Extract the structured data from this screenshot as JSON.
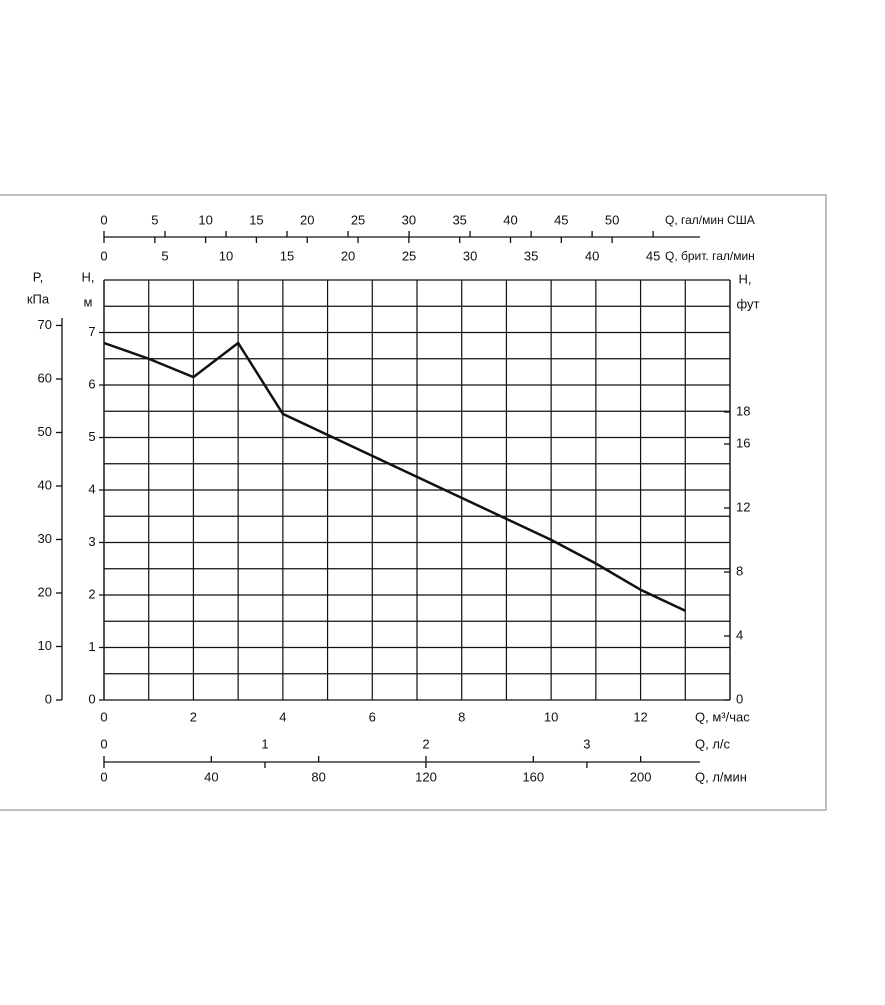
{
  "chart_data": {
    "type": "line",
    "x": [
      0,
      1,
      2,
      3,
      4,
      5,
      6,
      7,
      8,
      9,
      10,
      11,
      12,
      13
    ],
    "values": [
      6.8,
      6.5,
      6.15,
      6.8,
      5.45,
      5.05,
      4.65,
      4.25,
      3.85,
      3.45,
      3.05,
      2.6,
      2.1,
      1.7
    ],
    "color": "#111111",
    "xlim": [
      0,
      14
    ],
    "xticks": [
      0,
      2,
      4,
      6,
      8,
      10,
      12
    ],
    "xgrid": [
      1,
      3,
      5,
      7,
      9,
      11,
      13,
      14
    ],
    "ylim": [
      0,
      8
    ],
    "yticks": [
      0,
      1,
      2,
      3,
      4,
      5,
      6,
      7
    ],
    "ygrid": [
      0.5,
      1.5,
      2.5,
      3.5,
      4.5,
      5.5,
      6.5,
      7.5,
      8
    ],
    "xlabel": "Q, м³/час",
    "ylabel": [
      "H,",
      "м"
    ],
    "axes": [
      {
        "label": "Q, гал/мин США",
        "lim": [
          0,
          61.6
        ],
        "ticks": [
          0,
          5,
          10,
          15,
          20,
          25,
          30,
          35,
          40,
          45,
          50
        ]
      },
      {
        "label": "Q, брит. гал/мин",
        "lim": [
          0,
          51.3
        ],
        "ticks": [
          0,
          5,
          10,
          15,
          20,
          25,
          30,
          35,
          40,
          45
        ]
      },
      {
        "label": "Q, л/с",
        "lim": [
          0,
          3.889
        ],
        "ticks": [
          0,
          1,
          2,
          3
        ]
      },
      {
        "label": "Q, л/мин",
        "lim": [
          0,
          233.3
        ],
        "ticks": [
          0,
          40,
          80,
          120,
          160,
          200
        ]
      },
      {
        "label": [
          "P,",
          "кПа"
        ],
        "lim": [
          0,
          78.5
        ],
        "ticks": [
          0,
          10,
          20,
          30,
          40,
          50,
          60,
          70
        ]
      },
      {
        "label": [
          "H,",
          "фут"
        ],
        "lim": [
          0,
          26.25
        ],
        "ticks": [
          0,
          4,
          8,
          12,
          16,
          18
        ]
      }
    ]
  }
}
